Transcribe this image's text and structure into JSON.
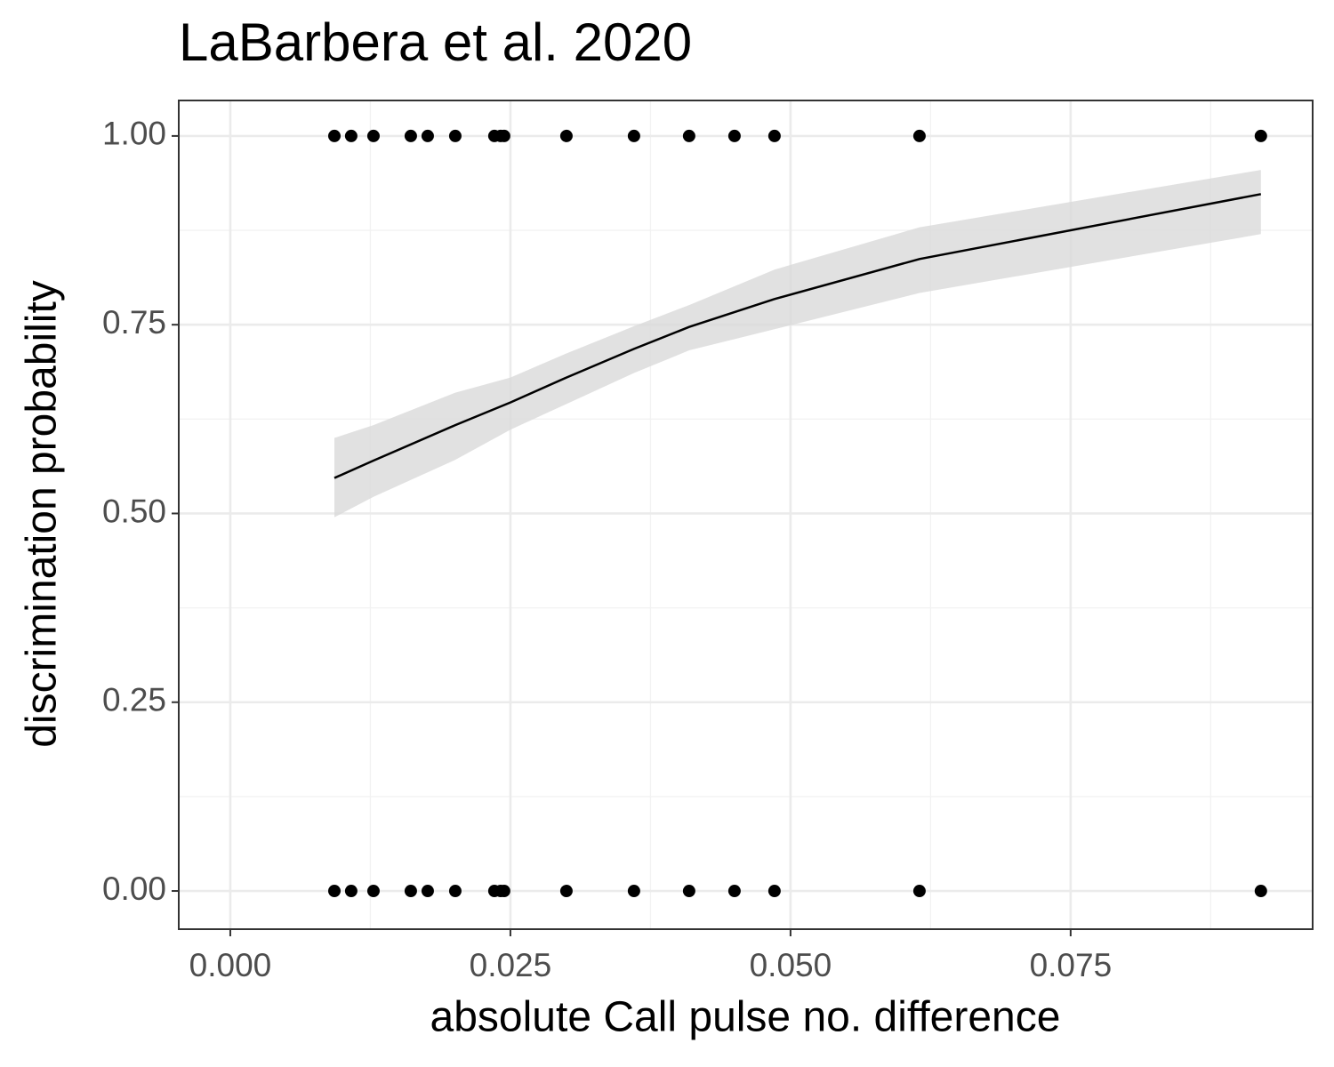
{
  "chart_data": {
    "type": "scatter",
    "title": "LaBarbera et al. 2020",
    "x_label": "absolute Call pulse no. difference",
    "y_label": "discrimination probability",
    "xlim": [
      -0.0046,
      0.0966
    ],
    "ylim": [
      -0.0506,
      1.047
    ],
    "xticks": [
      {
        "value": 0,
        "label": "0.000"
      },
      {
        "value": 0.025,
        "label": "0.025"
      },
      {
        "value": 0.05,
        "label": "0.050"
      },
      {
        "value": 0.075,
        "label": "0.075"
      }
    ],
    "yticks": [
      {
        "value": 0,
        "label": "0.00"
      },
      {
        "value": 0.25,
        "label": "0.25"
      },
      {
        "value": 0.5,
        "label": "0.50"
      },
      {
        "value": 0.75,
        "label": "0.75"
      },
      {
        "value": 1,
        "label": "1.00"
      }
    ],
    "xminor": [
      0.0125,
      0.0375,
      0.0625,
      0.0875
    ],
    "yminor": [
      0.125,
      0.375,
      0.625,
      0.875
    ],
    "grid": true,
    "points": {
      "color": "#000000",
      "x": [
        0.00929,
        0.01079,
        0.01278,
        0.01611,
        0.01762,
        0.02008,
        0.02357,
        0.02413,
        0.02444,
        0.03,
        0.03603,
        0.04095,
        0.045,
        0.04857,
        0.06151,
        0.09198,
        0.00929,
        0.01079,
        0.01278,
        0.01611,
        0.01762,
        0.02008,
        0.02357,
        0.02413,
        0.02444,
        0.03,
        0.03603,
        0.04095,
        0.045,
        0.04857,
        0.06151,
        0.09198
      ],
      "y": [
        1,
        1,
        1,
        1,
        1,
        1,
        1,
        1,
        1,
        1,
        1,
        1,
        1,
        1,
        1,
        1,
        0,
        0,
        0,
        0,
        0,
        0,
        0,
        0,
        0,
        0,
        0,
        0,
        0,
        0,
        0,
        0
      ]
    },
    "fit": {
      "color": "#000000",
      "band_color": "#d9d9d9",
      "x": [
        0.00929,
        0.01278,
        0.02008,
        0.025,
        0.03,
        0.03603,
        0.04095,
        0.04857,
        0.06151,
        0.09198
      ],
      "values": [
        0.547,
        0.57,
        0.617,
        0.647,
        0.68,
        0.718,
        0.747,
        0.784,
        0.837,
        0.923
      ],
      "lower": [
        0.495,
        0.522,
        0.571,
        0.611,
        0.645,
        0.686,
        0.716,
        0.744,
        0.792,
        0.87
      ],
      "upper": [
        0.6,
        0.617,
        0.66,
        0.68,
        0.712,
        0.748,
        0.776,
        0.823,
        0.879,
        0.955
      ]
    }
  }
}
